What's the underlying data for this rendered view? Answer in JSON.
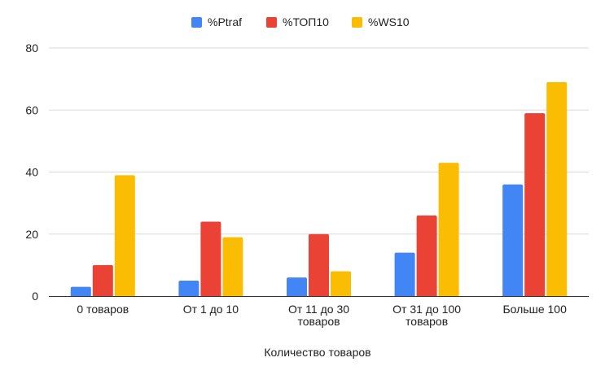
{
  "chart_data": {
    "type": "bar",
    "categories": [
      [
        "0 товаров"
      ],
      [
        "От 1 до 10"
      ],
      [
        "От 11 до 30",
        "товаров"
      ],
      [
        "От 31 до 100",
        "товаров"
      ],
      [
        "Больше 100"
      ]
    ],
    "series": [
      {
        "name": "%Ptraf",
        "color": "#4285F4",
        "values": [
          3,
          5,
          6,
          14,
          36
        ]
      },
      {
        "name": "%ТОП10",
        "color": "#EA4335",
        "values": [
          10,
          24,
          20,
          26,
          59
        ]
      },
      {
        "name": "%WS10",
        "color": "#FBBC04",
        "values": [
          39,
          19,
          8,
          43,
          69
        ]
      }
    ],
    "xlabel": "Количество товаров",
    "ylabel": "",
    "ylim": [
      0,
      80
    ],
    "yticks": [
      0,
      20,
      40,
      60,
      80
    ],
    "grid": true,
    "legend_position": "top-center"
  }
}
